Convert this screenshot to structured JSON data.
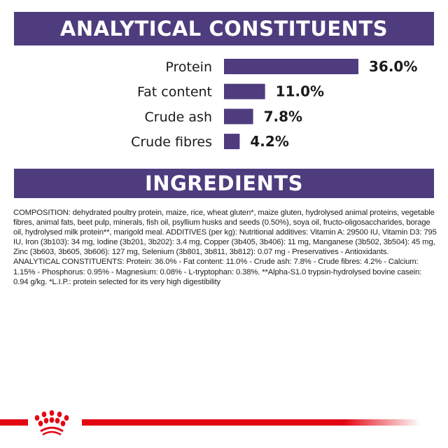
{
  "headers": {
    "analytical": "ANALYTICAL CONSTITUENTS",
    "ingredients": "INGREDIENTS"
  },
  "chart_data": {
    "type": "bar",
    "orientation": "horizontal",
    "categories": [
      "Protein",
      "Fat content",
      "Crude ash",
      "Crude fibres"
    ],
    "values": [
      36.0,
      11.0,
      7.8,
      4.2
    ],
    "value_labels": [
      "36.0%",
      "11.0%",
      "7.8%",
      "4.2%"
    ],
    "unit": "%",
    "bar_color": "#4e3c7e",
    "grid": false
  },
  "composition": "COMPOSITION: dehydrated poultry protein, maize, rice, wheat gluten*, maize gluten, hydrolysed animal proteins, vegetable fibres, animal fats, beet pulp, minerals, fish oil, psyllium husks and seeds (0.50%), soya oil, fructo-oligosaccharides, borage oil, hydrolysed milk protein**, marigold meal. ADDITIVES (per kg): Nutritional additives: Vitamin A: 29500 IU, Vitamin D3: 795 IU, Iron (3b103): 34 mg, Iodine (3b201, 3b202): 3.4 mg, Copper (3b405, 3b406): 11 mg, Manganese (3b502, 3b504): 45 mg, Zinc (3b603, 3b605, 3b606): 127 mg, Selenium (3b801, 3b811, 3b812): 0.07 mg - Preservatives - Antioxidants. ANALYTICAL CONSTITUENTS: Protein: 36.0% - Fat content: 11.0% - Crude ash: 7.8% - Crude fibres: 4.2% - Calcium: 1.15% - Phosphorus: 0.95% - Magnesium: 0.08% - L-tryptophan: 0.38%. **Alpha-S1.0 trypsin-hydrolysed bovine casein: 0.94 g/kg. *L.I.P.: protein selected for its very high digestibility",
  "footer": {
    "logo": "crown-logo",
    "color": "#e30613"
  }
}
